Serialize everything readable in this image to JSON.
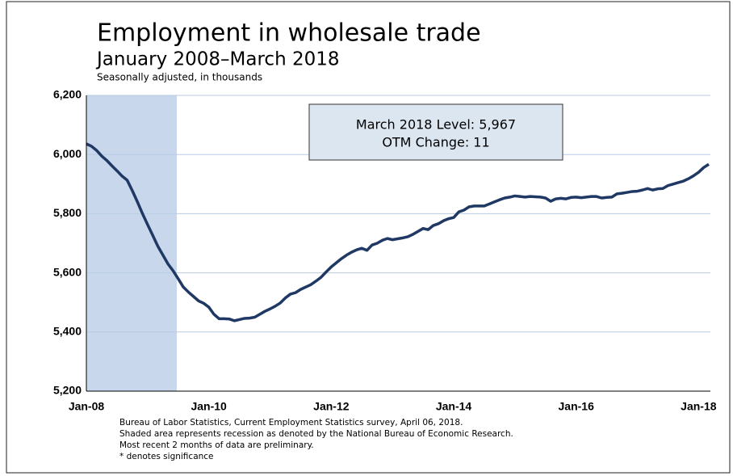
{
  "chart_data": {
    "type": "line",
    "title": "Employment in wholesale trade",
    "subtitle": "January 2008–March 2018",
    "note": "Seasonally adjusted, in thousands",
    "annotation": [
      "March 2018 Level: 5,967",
      "OTM Change: 11"
    ],
    "footnotes": [
      "Bureau of Labor Statistics, Current Employment Statistics survey, April 06, 2018.",
      "Shaded area represents recession as denoted by the National Bureau of Economic Research.",
      "Most recent 2 months of data are preliminary.",
      "* denotes significance"
    ],
    "categories": [
      "Jan-08",
      null,
      null,
      null,
      null,
      null,
      null,
      null,
      null,
      null,
      null,
      null,
      null,
      null,
      null,
      null,
      null,
      null,
      null,
      null,
      null,
      null,
      null,
      null,
      "Jan-10",
      null,
      null,
      null,
      null,
      null,
      null,
      null,
      null,
      null,
      null,
      null,
      null,
      null,
      null,
      null,
      null,
      null,
      null,
      null,
      null,
      null,
      null,
      null,
      "Jan-12",
      null,
      null,
      null,
      null,
      null,
      null,
      null,
      null,
      null,
      null,
      null,
      null,
      null,
      null,
      null,
      null,
      null,
      null,
      null,
      null,
      null,
      null,
      null,
      "Jan-14",
      null,
      null,
      null,
      null,
      null,
      null,
      null,
      null,
      null,
      null,
      null,
      null,
      null,
      null,
      null,
      null,
      null,
      null,
      null,
      null,
      null,
      null,
      null,
      "Jan-16",
      null,
      null,
      null,
      null,
      null,
      null,
      null,
      null,
      null,
      null,
      null,
      null,
      null,
      null,
      null,
      null,
      null,
      null,
      null,
      null,
      null,
      null,
      null,
      "Jan-18",
      null,
      null
    ],
    "series": [
      {
        "name": "Employment in wholesale trade",
        "color": "#1f3864",
        "values": [
          6036,
          6028,
          6014,
          5995,
          5980,
          5962,
          5945,
          5927,
          5913,
          5878,
          5840,
          5800,
          5763,
          5727,
          5690,
          5660,
          5630,
          5607,
          5580,
          5552,
          5535,
          5520,
          5505,
          5497,
          5484,
          5460,
          5445,
          5445,
          5444,
          5438,
          5442,
          5446,
          5447,
          5450,
          5460,
          5470,
          5478,
          5487,
          5498,
          5515,
          5528,
          5533,
          5544,
          5552,
          5560,
          5572,
          5585,
          5603,
          5620,
          5634,
          5648,
          5660,
          5670,
          5678,
          5683,
          5676,
          5694,
          5700,
          5710,
          5716,
          5712,
          5715,
          5718,
          5722,
          5730,
          5740,
          5750,
          5746,
          5760,
          5766,
          5776,
          5783,
          5787,
          5806,
          5812,
          5823,
          5826,
          5826,
          5826,
          5833,
          5840,
          5847,
          5853,
          5856,
          5860,
          5858,
          5856,
          5858,
          5857,
          5856,
          5853,
          5842,
          5850,
          5852,
          5850,
          5855,
          5856,
          5854,
          5856,
          5858,
          5858,
          5853,
          5855,
          5856,
          5867,
          5869,
          5872,
          5875,
          5876,
          5880,
          5885,
          5880,
          5884,
          5885,
          5895,
          5900,
          5905,
          5910,
          5918,
          5928,
          5940,
          5956,
          5967
        ]
      }
    ],
    "ylim": [
      5200,
      6200
    ],
    "yticks": [
      {
        "value": 5200,
        "label": "5,200"
      },
      {
        "value": 5400,
        "label": "5,400"
      },
      {
        "value": 5600,
        "label": "5,600"
      },
      {
        "value": 5800,
        "label": "5,800"
      },
      {
        "value": 6000,
        "label": "6,000"
      },
      {
        "value": 6200,
        "label": "6,200"
      }
    ],
    "grid": true
  }
}
